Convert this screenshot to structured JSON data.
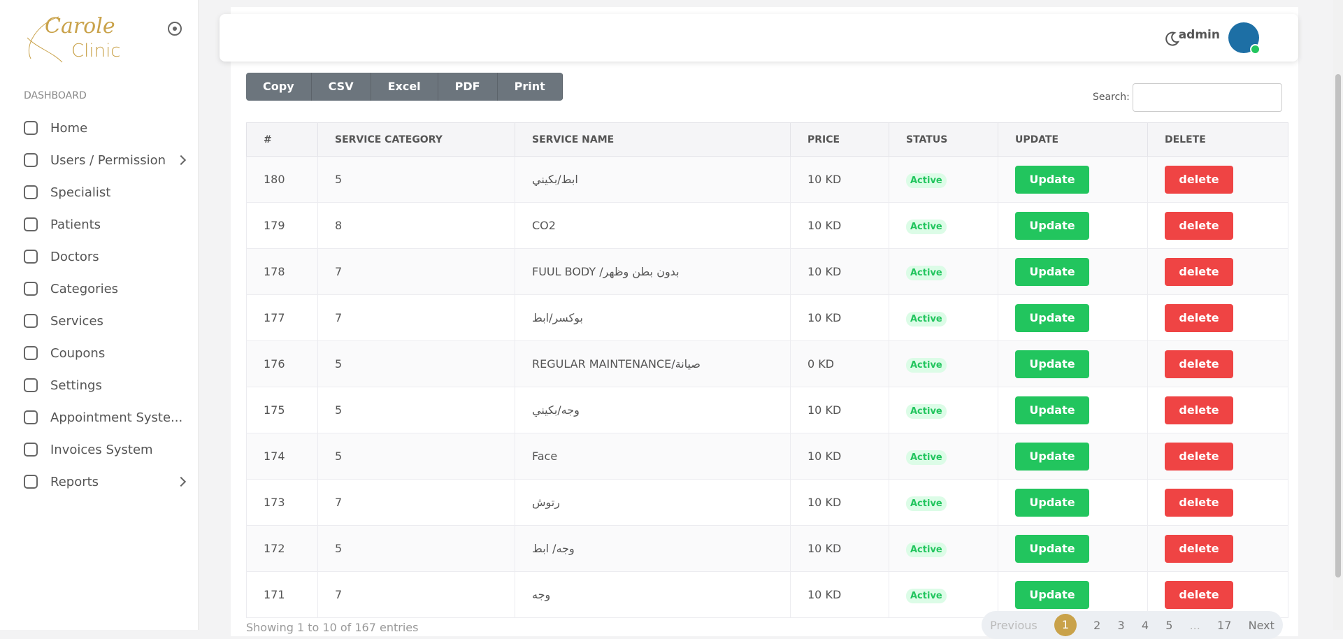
{
  "brand": {
    "line1": "Carole",
    "line2": "Clinic"
  },
  "sidebar": {
    "section": "DASHBOARD",
    "items": [
      "Home",
      "Users / Permission",
      "Specialist",
      "Patients",
      "Doctors",
      "Categories",
      "Services",
      "Coupons",
      "Settings",
      "Appointment Syste...",
      "Invoices System",
      "Reports"
    ]
  },
  "header": {
    "user": "admin"
  },
  "toolbar": {
    "buttons": [
      "Copy",
      "CSV",
      "Excel",
      "PDF",
      "Print"
    ],
    "search_label": "Search:"
  },
  "table": {
    "columns": [
      "#",
      "SERVICE CATEGORY",
      "SERVICE NAME",
      "PRICE",
      "STATUS",
      "UPDATE",
      "DELETE"
    ],
    "rows": [
      [
        180,
        5,
        "ابط/بكيني",
        "10 KD",
        "Active",
        "Update",
        "delete"
      ],
      [
        179,
        8,
        "CO2",
        "10 KD",
        "Active",
        "Update",
        "delete"
      ],
      [
        178,
        7,
        "FUUL BODY /بدون بطن وظهر",
        "10 KD",
        "Active",
        "Update",
        "delete"
      ],
      [
        177,
        7,
        "بوكسر/ابط",
        "10 KD",
        "Active",
        "Update",
        "delete"
      ],
      [
        176,
        5,
        "REGULAR MAINTENANCE/صيانة",
        "0 KD",
        "Active",
        "Update",
        "delete"
      ],
      [
        175,
        5,
        "وجه/بكيني",
        "10 KD",
        "Active",
        "Update",
        "delete"
      ],
      [
        174,
        5,
        "Face",
        "10 KD",
        "Active",
        "Update",
        "delete"
      ],
      [
        173,
        7,
        "رتوش",
        "10 KD",
        "Active",
        "Update",
        "delete"
      ],
      [
        172,
        5,
        "وجه/ ابط",
        "10 KD",
        "Active",
        "Update",
        "delete"
      ],
      [
        171,
        7,
        "وجه",
        "10 KD",
        "Active",
        "Update",
        "delete"
      ]
    ]
  },
  "footer": {
    "info": "Showing 1 to 10 of 167 entries",
    "pagination": [
      "Previous",
      "1",
      "2",
      "3",
      "4",
      "5",
      "...",
      "17",
      "Next"
    ]
  }
}
